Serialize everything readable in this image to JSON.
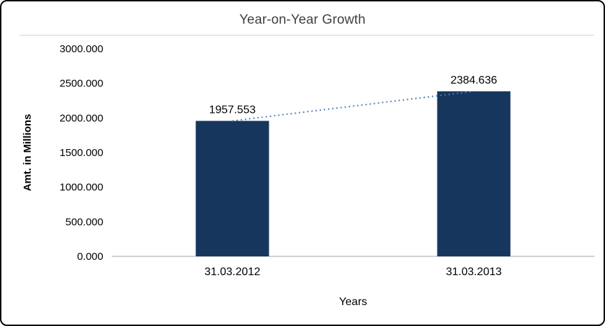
{
  "chart_data": {
    "type": "bar",
    "title": "Year-on-Year Growth",
    "xlabel": "Years",
    "ylabel": "Amt. in Millions",
    "categories": [
      "31.03.2012",
      "31.03.2013"
    ],
    "values": [
      1957.553,
      2384.636
    ],
    "data_labels": [
      "1957.553",
      "2384.636"
    ],
    "ylim": [
      0,
      3000
    ],
    "ytick_step": 500,
    "ytick_labels": [
      "0.000",
      "500.000",
      "1000.000",
      "1500.000",
      "2000.000",
      "2500.000",
      "3000.000"
    ],
    "bar_color": "#17365d",
    "trendline_color": "#4f81bd",
    "axis_line_color": "#a6a6a6",
    "grid": false,
    "legend_position": "none"
  }
}
